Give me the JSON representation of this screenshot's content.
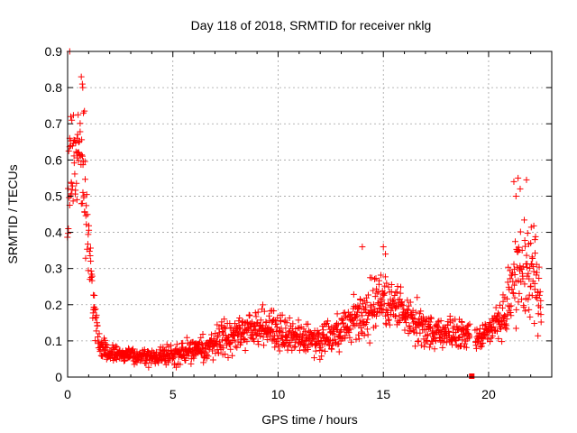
{
  "chart_data": {
    "type": "scatter",
    "title": "Day 118 of 2018, SRMTID for receiver nklg",
    "xlabel": "GPS time / hours",
    "ylabel": "SRMTID / TECUs",
    "xlim": [
      0,
      23
    ],
    "ylim": [
      0,
      0.9
    ],
    "x_ticks": [
      0,
      5,
      10,
      15,
      20
    ],
    "y_ticks": [
      0,
      0.1,
      0.2,
      0.3,
      0.4,
      0.5,
      0.6,
      0.7,
      0.8,
      0.9
    ],
    "x_tick_labels": [
      "0",
      "5",
      "10",
      "15",
      "20"
    ],
    "y_tick_labels": [
      "0",
      "0.1",
      "0.2",
      "0.3",
      "0.4",
      "0.5",
      "0.6",
      "0.7",
      "0.8",
      "0.9"
    ],
    "grid": true,
    "marker": "plus",
    "marker_color": "#ff0000",
    "series": [
      {
        "name": "SRMTID",
        "trend": {
          "x": [
            0,
            0.3,
            0.6,
            0.9,
            1.2,
            1.5,
            2.0,
            3.0,
            4.0,
            5.0,
            6.0,
            7.0,
            8.0,
            9.0,
            10.0,
            11.0,
            12.0,
            13.0,
            14.0,
            14.5,
            15.0,
            15.5,
            16.0,
            17.0,
            18.0,
            19.0,
            19.5,
            20.0,
            20.5,
            21.0,
            21.5,
            22.0,
            22.5
          ],
          "y": [
            0.52,
            0.55,
            0.62,
            0.45,
            0.2,
            0.09,
            0.065,
            0.06,
            0.055,
            0.065,
            0.075,
            0.09,
            0.12,
            0.14,
            0.13,
            0.11,
            0.1,
            0.13,
            0.17,
            0.2,
            0.21,
            0.2,
            0.18,
            0.13,
            0.12,
            0.12,
            0.1,
            0.13,
            0.15,
            0.22,
            0.32,
            0.3,
            0.2
          ],
          "spread": [
            0.18,
            0.14,
            0.12,
            0.12,
            0.06,
            0.03,
            0.02,
            0.02,
            0.02,
            0.025,
            0.03,
            0.04,
            0.05,
            0.05,
            0.05,
            0.04,
            0.04,
            0.05,
            0.07,
            0.08,
            0.07,
            0.06,
            0.06,
            0.05,
            0.04,
            0.04,
            0.03,
            0.04,
            0.05,
            0.08,
            0.12,
            0.12,
            0.08
          ]
        },
        "outliers": [
          {
            "x": 0.1,
            "y": 0.9
          },
          {
            "x": 0.65,
            "y": 0.83
          },
          {
            "x": 0.7,
            "y": 0.81
          },
          {
            "x": 0.72,
            "y": 0.8
          },
          {
            "x": 0.75,
            "y": 0.73
          },
          {
            "x": 0.8,
            "y": 0.735
          },
          {
            "x": 0.15,
            "y": 0.72
          },
          {
            "x": 0.2,
            "y": 0.71
          },
          {
            "x": 0.5,
            "y": 0.725
          },
          {
            "x": 0.1,
            "y": 0.66
          },
          {
            "x": 0.3,
            "y": 0.655
          },
          {
            "x": 0.45,
            "y": 0.66
          },
          {
            "x": 14.0,
            "y": 0.36
          },
          {
            "x": 15.0,
            "y": 0.36
          },
          {
            "x": 15.1,
            "y": 0.34
          },
          {
            "x": 21.2,
            "y": 0.54
          },
          {
            "x": 21.4,
            "y": 0.55
          },
          {
            "x": 21.8,
            "y": 0.545
          },
          {
            "x": 21.5,
            "y": 0.52
          },
          {
            "x": 21.3,
            "y": 0.5
          },
          {
            "x": 22.2,
            "y": 0.38
          },
          {
            "x": 22.0,
            "y": 0.37
          }
        ],
        "gap": [
          19.1,
          19.35
        ],
        "square_marker": {
          "x": 19.2,
          "y": 0.0
        }
      }
    ]
  }
}
